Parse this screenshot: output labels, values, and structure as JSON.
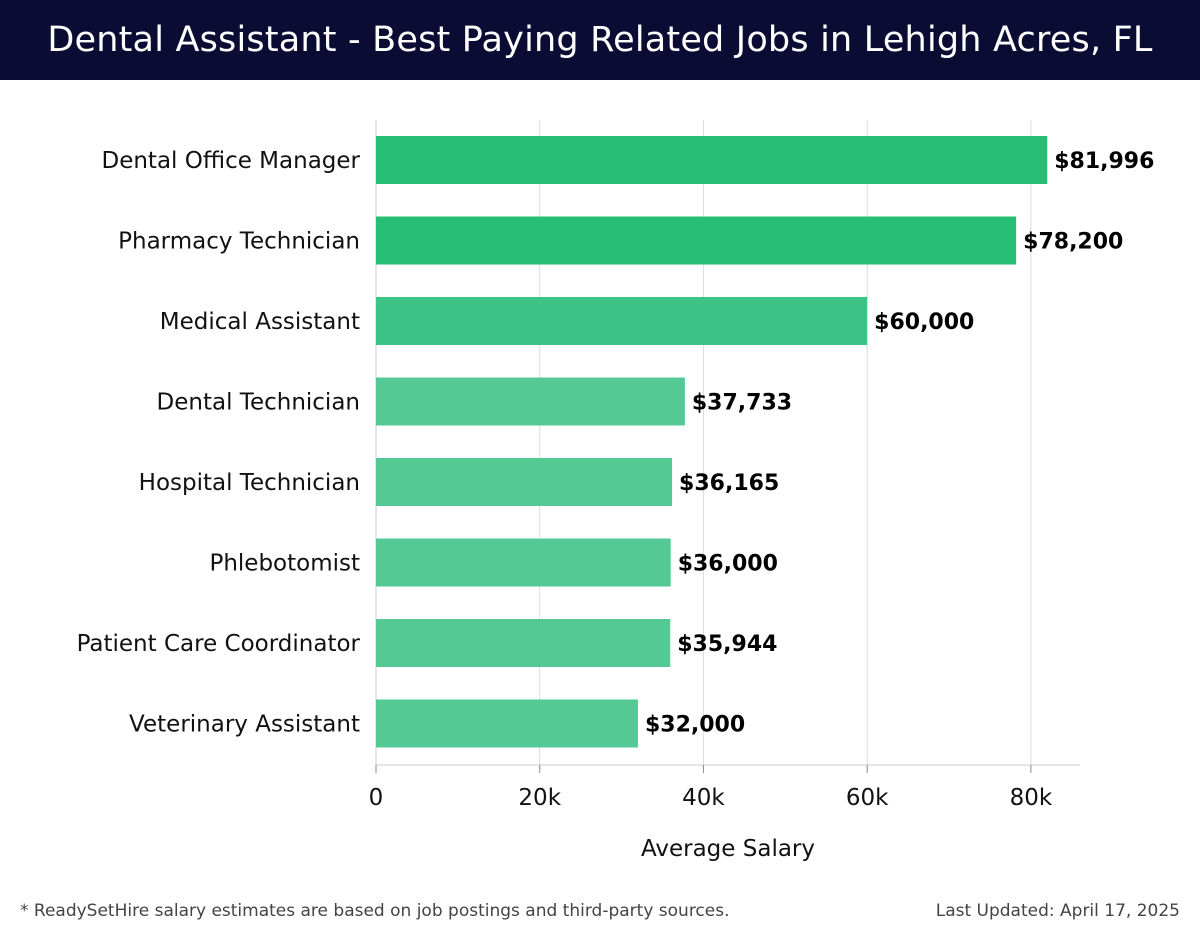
{
  "header": {
    "title": "Dental Assistant - Best Paying Related Jobs in Lehigh Acres, FL"
  },
  "chart_data": {
    "type": "bar",
    "orientation": "horizontal",
    "categories": [
      "Dental Office Manager",
      "Pharmacy Technician",
      "Medical Assistant",
      "Dental Technician",
      "Hospital Technician",
      "Phlebotomist",
      "Patient Care Coordinator",
      "Veterinary Assistant"
    ],
    "values": [
      81996,
      78200,
      60000,
      37733,
      36165,
      36000,
      35944,
      32000
    ],
    "value_labels": [
      "$81,996",
      "$78,200",
      "$60,000",
      "$37,733",
      "$36,165",
      "$36,000",
      "$35,944",
      "$32,000"
    ],
    "xlabel": "Average Salary",
    "ylabel": "",
    "xlim": [
      0,
      86000
    ],
    "xticks": [
      0,
      20000,
      40000,
      60000,
      80000
    ],
    "xtick_labels": [
      "0",
      "20k",
      "40k",
      "60k",
      "80k"
    ],
    "grid": "vertical",
    "bar_colors": [
      "#26bd74",
      "#26bd74",
      "#3cc385",
      "#55c994",
      "#55c994",
      "#55c994",
      "#55c994",
      "#55c994"
    ]
  },
  "footer": {
    "note": "* ReadySetHire salary estimates are based on job postings and third-party sources.",
    "updated": "Last Updated: April 17, 2025"
  }
}
